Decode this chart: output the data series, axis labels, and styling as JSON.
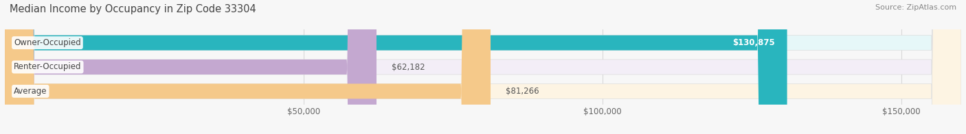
{
  "title": "Median Income by Occupancy in Zip Code 33304",
  "source": "Source: ZipAtlas.com",
  "categories": [
    "Owner-Occupied",
    "Renter-Occupied",
    "Average"
  ],
  "values": [
    130875,
    62182,
    81266
  ],
  "labels": [
    "$130,875",
    "$62,182",
    "$81,266"
  ],
  "label_inside": [
    true,
    false,
    false
  ],
  "bar_colors": [
    "#29b5be",
    "#c4a8d0",
    "#f5c98a"
  ],
  "bar_bg_colors": [
    "#e6f7f8",
    "#f3eef7",
    "#fdf4e3"
  ],
  "xlim": [
    0,
    160000
  ],
  "xticks": [
    50000,
    100000,
    150000
  ],
  "xticklabels": [
    "$50,000",
    "$100,000",
    "$150,000"
  ],
  "title_fontsize": 10.5,
  "source_fontsize": 8,
  "label_fontsize": 8.5,
  "bar_height": 0.62,
  "background_color": "#f7f7f7",
  "grid_color": "#d8d8d8",
  "bar_label_color_inside": "#ffffff",
  "bar_label_color_outside": "#555555",
  "category_fontsize": 8.5,
  "category_color": "#444444"
}
